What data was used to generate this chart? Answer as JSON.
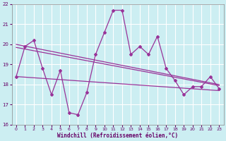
{
  "xlabel": "Windchill (Refroidissement éolien,°C)",
  "background_color": "#cceef2",
  "grid_color": "#ffffff",
  "line_color": "#993399",
  "xlim": [
    -0.5,
    23.5
  ],
  "ylim": [
    16,
    22
  ],
  "yticks": [
    16,
    17,
    18,
    19,
    20,
    21,
    22
  ],
  "xticks": [
    0,
    1,
    2,
    3,
    4,
    5,
    6,
    7,
    8,
    9,
    10,
    11,
    12,
    13,
    14,
    15,
    16,
    17,
    18,
    19,
    20,
    21,
    22,
    23
  ],
  "x_main": [
    0,
    1,
    2,
    3,
    4,
    5,
    6,
    7,
    8,
    9,
    10,
    11,
    12,
    13,
    14,
    15,
    16,
    17,
    18,
    19,
    20,
    21,
    22,
    23
  ],
  "y_main": [
    18.4,
    19.9,
    20.2,
    18.8,
    17.5,
    18.7,
    16.6,
    16.5,
    17.6,
    19.5,
    20.6,
    21.7,
    21.7,
    19.5,
    19.9,
    19.5,
    20.4,
    18.8,
    18.2,
    17.5,
    17.9,
    17.9,
    18.4,
    17.8
  ],
  "trend_line1_start": 20.0,
  "trend_line1_end": 18.0,
  "trend_line2_start": 19.85,
  "trend_line2_end": 17.95,
  "trend_line3_start": 18.4,
  "trend_line3_end": 17.7
}
